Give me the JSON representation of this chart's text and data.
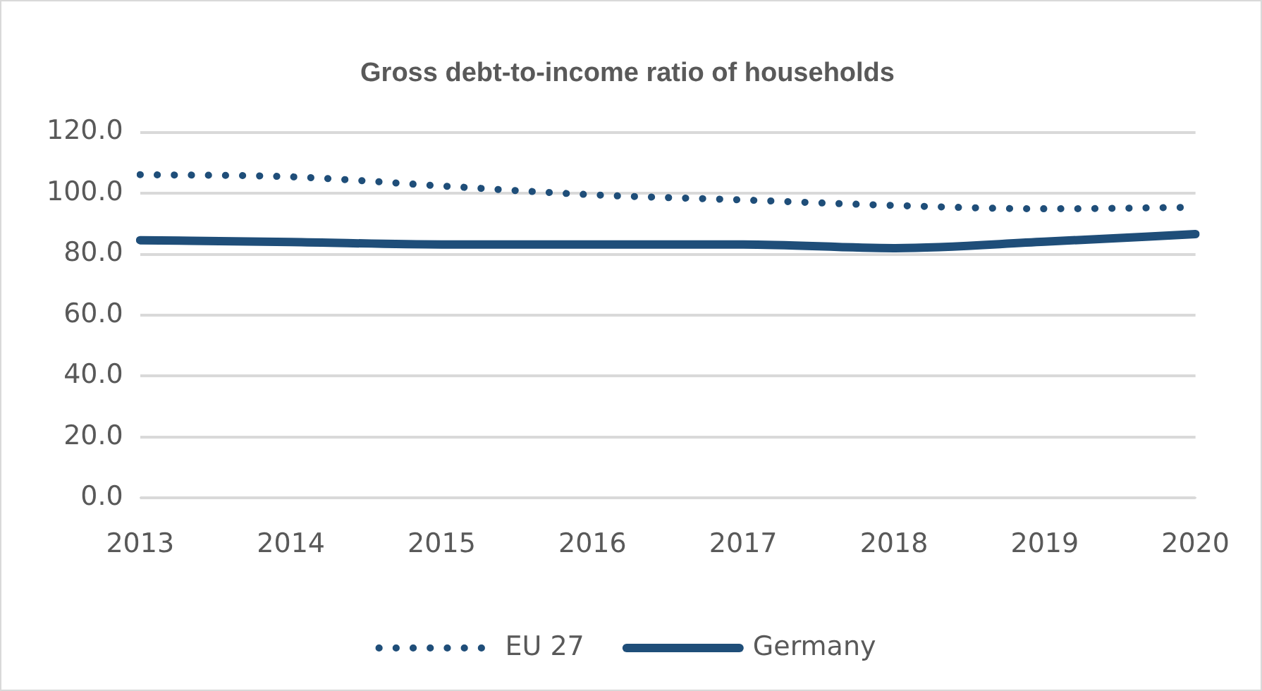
{
  "chart_data": {
    "type": "line",
    "title": "Gross debt-to-income ratio of households",
    "categories": [
      "2013",
      "2014",
      "2015",
      "2016",
      "2017",
      "2018",
      "2019",
      "2020"
    ],
    "series": [
      {
        "name": "EU 27",
        "color": "#1f4e79",
        "line_style": "dotted",
        "values": [
          106.1,
          105.4,
          102.4,
          99.5,
          97.8,
          96.0,
          94.9,
          95.4
        ]
      },
      {
        "name": "Germany",
        "color": "#1f4e79",
        "line_style": "solid",
        "values": [
          84.6,
          84.0,
          83.2,
          83.2,
          83.2,
          82.0,
          84.1,
          86.6
        ]
      }
    ],
    "ylim": [
      0,
      120
    ],
    "yticks": [
      {
        "value": 0,
        "label": "0.0"
      },
      {
        "value": 20,
        "label": "20.0"
      },
      {
        "value": 40,
        "label": "40.0"
      },
      {
        "value": 60,
        "label": "60.0"
      },
      {
        "value": 80,
        "label": "80.0"
      },
      {
        "value": 100,
        "label": "100.0"
      },
      {
        "value": 120,
        "label": "120.0"
      }
    ],
    "grid": "y",
    "legend": "bottom",
    "marker": "none"
  }
}
